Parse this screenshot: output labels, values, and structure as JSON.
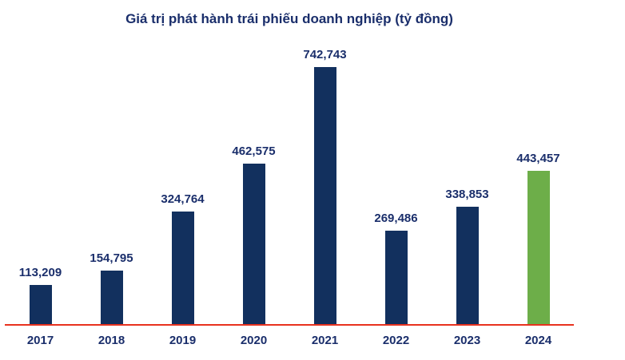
{
  "chart_data": {
    "type": "bar",
    "title": "Giá trị phát hành trái phiếu doanh nghiệp (tỷ đồng)",
    "categories": [
      "2017",
      "2018",
      "2019",
      "2020",
      "2021",
      "2022",
      "2023",
      "2024"
    ],
    "values": [
      113209,
      154795,
      324764,
      462575,
      742743,
      269486,
      338853,
      443457
    ],
    "value_labels": [
      "113,209",
      "154,795",
      "324,764",
      "462,575",
      "742,743",
      "269,486",
      "338,853",
      "443,457"
    ],
    "xlabel": "",
    "ylabel": "",
    "ylim": [
      0,
      742743
    ],
    "grid": false,
    "legend": false,
    "colors": {
      "bar": "#12305e",
      "highlight_bar": "#6dae49",
      "highlight_index": 7,
      "text": "#1a2e6b",
      "axis_line": "#e8321e"
    }
  }
}
